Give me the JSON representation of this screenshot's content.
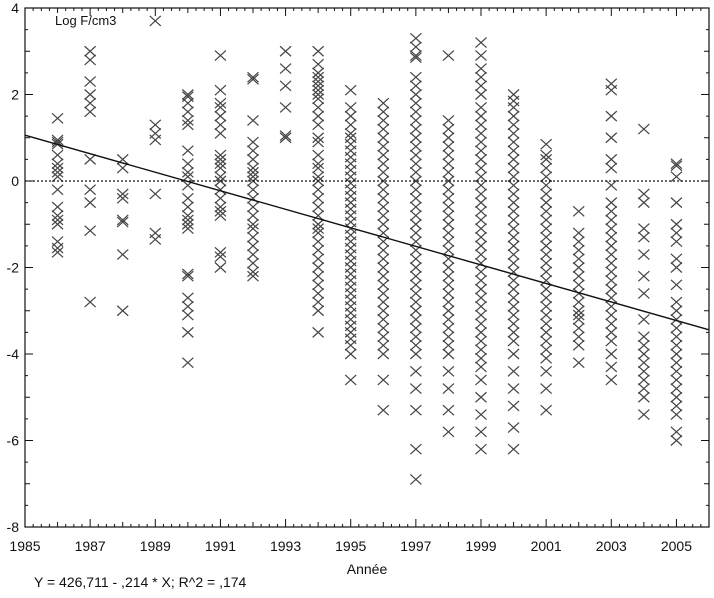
{
  "chart_data": {
    "type": "scatter",
    "title": "",
    "ylabel": "Log F/cm3",
    "xlabel": "Année",
    "equation": "Y = 426,711 - ,214 * X; R^2 = ,174",
    "xlim": [
      1985,
      2006
    ],
    "ylim": [
      -8,
      4
    ],
    "x_ticks": [
      1985,
      1987,
      1989,
      1991,
      1993,
      1995,
      1997,
      1999,
      2001,
      2003,
      2005
    ],
    "x_tick_labels": [
      "1985",
      "1987",
      "1989",
      "1991",
      "1993",
      "1995",
      "1997",
      "1999",
      "2001",
      "2003",
      "2005"
    ],
    "y_ticks": [
      4,
      2,
      0,
      -2,
      -4,
      -6,
      -8
    ],
    "y_tick_labels": [
      "4",
      "2",
      "0",
      "-2",
      "-4",
      "-6",
      "-8"
    ],
    "reference_line_y": 0,
    "regression": {
      "x": [
        1985,
        2006
      ],
      "y": [
        1.06,
        -3.44
      ]
    },
    "marker_color": "#444444",
    "series": [
      {
        "x": 1986,
        "y": [
          1.45,
          0.95,
          0.9,
          0.85,
          0.6,
          0.4,
          0.3,
          0.2,
          0.1,
          -0.2,
          -0.6,
          -0.8,
          -0.9,
          -1.0,
          -1.4,
          -1.55,
          -1.65
        ]
      },
      {
        "x": 1987,
        "y": [
          3.0,
          2.8,
          2.3,
          2.0,
          1.8,
          1.6,
          0.5,
          -0.2,
          -0.5,
          -1.15,
          -2.8
        ]
      },
      {
        "x": 1988,
        "y": [
          0.5,
          0.3,
          -0.3,
          -0.4,
          -0.9,
          -0.95,
          -1.7,
          -3.0
        ]
      },
      {
        "x": 1989,
        "y": [
          3.7,
          1.3,
          1.1,
          0.95,
          -0.3,
          -1.2,
          -1.35
        ]
      },
      {
        "x": 1990,
        "y": [
          2.0,
          1.95,
          1.8,
          1.6,
          1.4,
          1.3,
          0.7,
          0.4,
          0.2,
          0.1,
          -0.1,
          -0.4,
          -0.6,
          -0.8,
          -0.9,
          -1.0,
          -1.1,
          -2.15,
          -2.2,
          -2.7,
          -2.9,
          -3.1,
          -3.5,
          -4.2
        ]
      },
      {
        "x": 1991,
        "y": [
          2.9,
          2.1,
          1.8,
          1.7,
          1.5,
          1.3,
          1.1,
          0.6,
          0.5,
          0.4,
          0.3,
          0.1,
          0,
          -0.2,
          -0.4,
          -0.6,
          -0.7,
          -0.8,
          -1.65,
          -1.75,
          -2.0
        ]
      },
      {
        "x": 1992,
        "y": [
          2.4,
          2.35,
          1.4,
          0.9,
          0.7,
          0.5,
          0.3,
          0.2,
          0.1,
          0,
          -0.2,
          -0.4,
          -0.6,
          -0.8,
          -1.0,
          -1.1,
          -1.3,
          -1.5,
          -1.7,
          -1.9,
          -2.1,
          -2.2
        ]
      },
      {
        "x": 1993,
        "y": [
          3.0,
          2.6,
          2.2,
          1.7,
          1.05,
          1.0
        ]
      },
      {
        "x": 1994,
        "y": [
          3.0,
          2.7,
          2.5,
          2.4,
          2.3,
          2.2,
          2.1,
          2.0,
          1.9,
          1.7,
          1.5,
          1.3,
          1.0,
          0.9,
          0.6,
          0.4,
          0.3,
          0.1,
          0,
          -0.2,
          -0.4,
          -0.6,
          -0.8,
          -1.0,
          -1.1,
          -1.2,
          -1.4,
          -1.6,
          -1.8,
          -2.0,
          -2.2,
          -2.4,
          -2.6,
          -2.8,
          -3.0,
          -3.5
        ]
      },
      {
        "x": 1995,
        "y": [
          2.1,
          1.7,
          1.5,
          1.3,
          1.1,
          1.0,
          0.85,
          0.7,
          0.55,
          0.4,
          0.25,
          0.1,
          -0.05,
          -0.2,
          -0.35,
          -0.5,
          -0.65,
          -0.8,
          -0.95,
          -1.1,
          -1.25,
          -1.4,
          -1.55,
          -1.7,
          -1.85,
          -2.0,
          -2.15,
          -2.3,
          -2.45,
          -2.6,
          -2.75,
          -2.9,
          -3.05,
          -3.2,
          -3.35,
          -3.5,
          -3.65,
          -3.8,
          -4.0,
          -4.6
        ]
      },
      {
        "x": 1996,
        "y": [
          1.8,
          1.6,
          1.4,
          1.2,
          1.0,
          0.8,
          0.6,
          0.4,
          0.2,
          0,
          -0.2,
          -0.4,
          -0.6,
          -0.8,
          -1.0,
          -1.2,
          -1.4,
          -1.6,
          -1.8,
          -2.0,
          -2.2,
          -2.4,
          -2.6,
          -2.8,
          -3.0,
          -3.2,
          -3.4,
          -3.6,
          -3.8,
          -4.0,
          -4.6,
          -5.3
        ]
      },
      {
        "x": 1997,
        "y": [
          3.3,
          3.1,
          2.9,
          2.85,
          2.4,
          2.2,
          2.0,
          1.8,
          1.6,
          1.4,
          1.2,
          1.0,
          0.8,
          0.6,
          0.4,
          0.2,
          0,
          -0.2,
          -0.4,
          -0.6,
          -0.8,
          -1.0,
          -1.2,
          -1.4,
          -1.6,
          -1.8,
          -2.0,
          -2.2,
          -2.4,
          -2.6,
          -2.8,
          -3.0,
          -3.2,
          -3.4,
          -3.6,
          -3.8,
          -4.0,
          -4.4,
          -4.8,
          -5.3,
          -6.2,
          -6.9
        ]
      },
      {
        "x": 1998,
        "y": [
          2.9,
          1.4,
          1.2,
          1.0,
          0.8,
          0.6,
          0.4,
          0.2,
          0,
          -0.2,
          -0.4,
          -0.6,
          -0.8,
          -1.0,
          -1.2,
          -1.4,
          -1.6,
          -1.8,
          -2.0,
          -2.2,
          -2.4,
          -2.6,
          -2.8,
          -3.0,
          -3.2,
          -3.4,
          -3.6,
          -3.8,
          -4.0,
          -4.4,
          -4.8,
          -5.3,
          -5.8
        ]
      },
      {
        "x": 1999,
        "y": [
          3.2,
          2.9,
          2.6,
          2.4,
          2.2,
          2.0,
          1.7,
          1.5,
          1.3,
          1.1,
          0.9,
          0.7,
          0.5,
          0.3,
          0.1,
          -0.1,
          -0.3,
          -0.5,
          -0.7,
          -0.9,
          -1.1,
          -1.3,
          -1.5,
          -1.7,
          -1.9,
          -2.1,
          -2.3,
          -2.5,
          -2.7,
          -2.9,
          -3.1,
          -3.3,
          -3.5,
          -3.7,
          -3.9,
          -4.1,
          -4.3,
          -4.6,
          -5.0,
          -5.4,
          -5.8,
          -6.2
        ]
      },
      {
        "x": 2000,
        "y": [
          2.0,
          1.85,
          1.7,
          1.5,
          1.3,
          1.1,
          0.9,
          0.7,
          0.5,
          0.3,
          0.1,
          -0.1,
          -0.3,
          -0.5,
          -0.7,
          -0.9,
          -1.1,
          -1.3,
          -1.5,
          -1.7,
          -1.9,
          -2.1,
          -2.3,
          -2.5,
          -2.7,
          -2.9,
          -3.1,
          -3.3,
          -3.5,
          -3.7,
          -4.0,
          -4.4,
          -4.8,
          -5.2,
          -5.7,
          -6.2
        ]
      },
      {
        "x": 2001,
        "y": [
          0.85,
          0.6,
          0.5,
          0.3,
          0.1,
          -0.1,
          -0.3,
          -0.5,
          -0.7,
          -0.9,
          -1.1,
          -1.3,
          -1.5,
          -1.7,
          -1.9,
          -2.1,
          -2.3,
          -2.5,
          -2.7,
          -2.9,
          -3.1,
          -3.3,
          -3.5,
          -3.7,
          -3.9,
          -4.1,
          -4.4,
          -4.8,
          -5.3
        ]
      },
      {
        "x": 2002,
        "y": [
          -0.7,
          -1.2,
          -1.4,
          -1.6,
          -1.8,
          -2.0,
          -2.2,
          -2.4,
          -2.6,
          -2.8,
          -3.0,
          -3.1,
          -3.2,
          -3.4,
          -3.6,
          -3.8,
          -4.2
        ]
      },
      {
        "x": 2003,
        "y": [
          2.25,
          2.1,
          1.5,
          1.0,
          0.5,
          0.3,
          -0.1,
          -0.5,
          -0.7,
          -0.9,
          -1.1,
          -1.3,
          -1.5,
          -1.7,
          -1.9,
          -2.1,
          -2.3,
          -2.5,
          -2.7,
          -2.9,
          -3.1,
          -3.3,
          -3.5,
          -3.7,
          -4.0,
          -4.3,
          -4.6
        ]
      },
      {
        "x": 2004,
        "y": [
          1.2,
          -0.3,
          -0.5,
          -1.1,
          -1.3,
          -1.7,
          -2.2,
          -2.6,
          -3.2,
          -3.6,
          -3.8,
          -4.0,
          -4.2,
          -4.4,
          -4.6,
          -4.8,
          -5.0,
          -5.4
        ]
      },
      {
        "x": 2005,
        "y": [
          0.4,
          0.35,
          0.1,
          -0.5,
          -1.0,
          -1.2,
          -1.4,
          -1.8,
          -2.0,
          -2.4,
          -2.8,
          -3.0,
          -3.2,
          -3.4,
          -3.6,
          -3.8,
          -4.0,
          -4.2,
          -4.4,
          -4.6,
          -4.8,
          -5.0,
          -5.2,
          -5.4,
          -5.8,
          -6.0
        ]
      }
    ]
  }
}
